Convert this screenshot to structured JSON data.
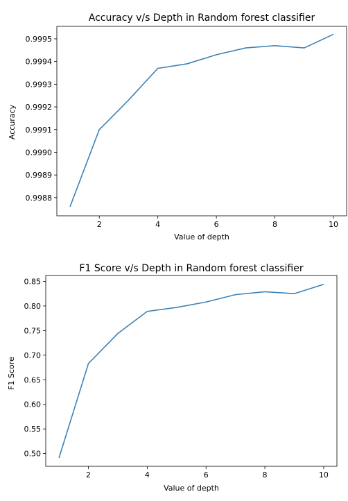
{
  "chart_data": [
    {
      "type": "line",
      "title": "Accuracy v/s Depth in Random forest classifier",
      "xlabel": "Value of depth",
      "ylabel": "Accuracy",
      "x": [
        1,
        2,
        3,
        4,
        5,
        6,
        7,
        8,
        9,
        10
      ],
      "series": [
        {
          "values": [
            0.99876,
            0.9991,
            0.99923,
            0.99937,
            0.99939,
            0.99943,
            0.99946,
            0.99947,
            0.99946,
            0.99952
          ]
        }
      ],
      "xlim": [
        0.55,
        10.45
      ],
      "ylim": [
        0.99872,
        0.999555
      ],
      "xticks": [
        2,
        4,
        6,
        8,
        10
      ],
      "xtick_labels": [
        "2",
        "4",
        "6",
        "8",
        "10"
      ],
      "yticks": [
        0.9988,
        0.9989,
        0.999,
        0.9991,
        0.9992,
        0.9993,
        0.9994,
        0.9995
      ],
      "ytick_labels": [
        "0.9988",
        "0.9989",
        "0.9990",
        "0.9991",
        "0.9992",
        "0.9993",
        "0.9994",
        "0.9995"
      ],
      "grid": false,
      "line_color": "#3b82b6"
    },
    {
      "type": "line",
      "title": "F1 Score v/s Depth in Random forest classifier",
      "xlabel": "Value of depth",
      "ylabel": "F1 Score",
      "x": [
        1,
        2,
        3,
        4,
        5,
        6,
        7,
        8,
        9,
        10
      ],
      "series": [
        {
          "values": [
            0.491,
            0.683,
            0.744,
            0.789,
            0.797,
            0.808,
            0.823,
            0.829,
            0.825,
            0.844
          ]
        }
      ],
      "xlim": [
        0.55,
        10.45
      ],
      "ylim": [
        0.474,
        0.862
      ],
      "xticks": [
        2,
        4,
        6,
        8,
        10
      ],
      "xtick_labels": [
        "2",
        "4",
        "6",
        "8",
        "10"
      ],
      "yticks": [
        0.5,
        0.55,
        0.6,
        0.65,
        0.7,
        0.75,
        0.8,
        0.85
      ],
      "ytick_labels": [
        "0.50",
        "0.55",
        "0.60",
        "0.65",
        "0.70",
        "0.75",
        "0.80",
        "0.85"
      ],
      "grid": false,
      "line_color": "#3b82b6"
    }
  ]
}
